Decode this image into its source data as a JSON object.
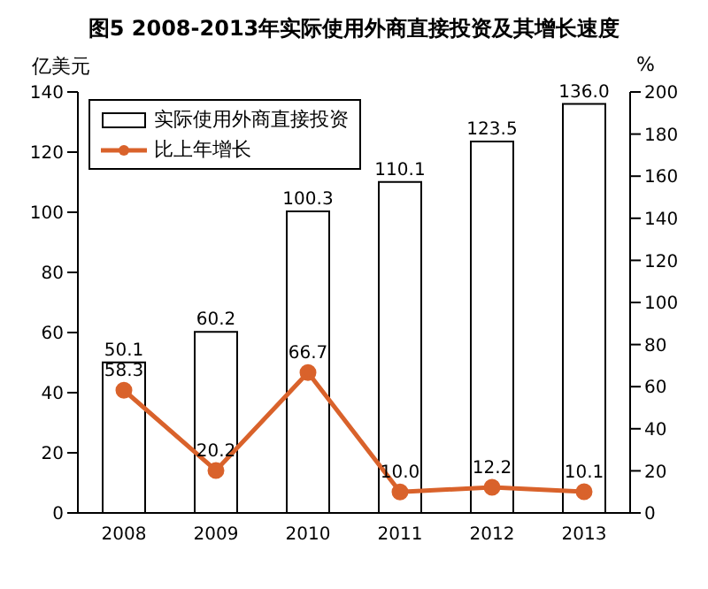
{
  "chart_data": {
    "type": "bar",
    "title": "图5 2008-2013年实际使用外商直接投资及其增长速度",
    "ylabel": "亿美元",
    "y2label": "%",
    "categories": [
      "2008",
      "2009",
      "2010",
      "2011",
      "2012",
      "2013"
    ],
    "series": [
      {
        "name": "实际使用外商直接投资",
        "color": "#ffffff",
        "values": [
          50.1,
          60.2,
          100.3,
          110.1,
          123.5,
          136.0
        ],
        "value_labels": [
          "50.1",
          "60.2",
          "100.3",
          "110.1",
          "123.5",
          "136.0"
        ]
      },
      {
        "name": "比上年增长",
        "type": "line",
        "axis": "y2",
        "color": "#d9622b",
        "marker": "circle",
        "values": [
          58.3,
          20.2,
          66.7,
          10.0,
          12.2,
          10.1
        ],
        "value_labels": [
          "58.3",
          "20.2",
          "66.7",
          "10.0",
          "12.2",
          "10.1"
        ]
      }
    ],
    "ylim": [
      0,
      140
    ],
    "yticks": [
      0,
      20,
      40,
      60,
      80,
      100,
      120,
      140
    ],
    "y2lim": [
      0,
      200
    ],
    "y2ticks": [
      0,
      20,
      40,
      60,
      80,
      100,
      120,
      140,
      160,
      180,
      200
    ],
    "grid": false,
    "legend": "top left"
  }
}
